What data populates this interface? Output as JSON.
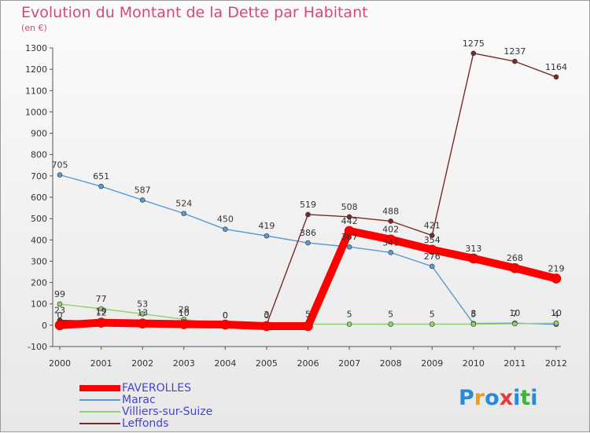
{
  "title": "Evolution du Montant de la Dette par Habitant",
  "unit_label": "(en €)",
  "logo": {
    "text": "Proxiti",
    "letters": [
      "P",
      "r",
      "o",
      "x",
      "i",
      "t",
      "i"
    ],
    "colors": [
      "#2a8ad8",
      "#e8a01a",
      "#2a8ad8",
      "#e43d3d",
      "#2a8ad8",
      "#3db43d",
      "#2a8ad8"
    ]
  },
  "chart_data": {
    "type": "line",
    "title": "Evolution du Montant de la Dette par Habitant",
    "ylabel": "(en €)",
    "xlabel": "",
    "x": [
      "2000",
      "2001",
      "2002",
      "2003",
      "2004",
      "2005",
      "2006",
      "2007",
      "2008",
      "2009",
      "2010",
      "2011",
      "2012"
    ],
    "ylim": [
      -100,
      1300
    ],
    "yticks": [
      "-100",
      "0",
      "100",
      "200",
      "300",
      "400",
      "500",
      "600",
      "700",
      "800",
      "900",
      "1000",
      "1100",
      "1200",
      "1300"
    ],
    "grid": false,
    "legend_position": "bottom-left",
    "series": [
      {
        "name": "FAVEROLLES",
        "color": "#ff0000",
        "width": 10,
        "values": [
          0,
          12,
          8,
          5,
          3,
          -4,
          -4,
          442,
          402,
          354,
          313,
          268,
          219
        ],
        "labels": [
          "0",
          "12",
          "",
          "",
          "",
          "",
          "",
          "442",
          "402",
          "354",
          "313",
          "268",
          "219"
        ]
      },
      {
        "name": "Marac",
        "color": "#5a9ad0",
        "width": 1.4,
        "values": [
          705,
          651,
          587,
          524,
          450,
          419,
          386,
          367,
          341,
          276,
          8,
          10,
          4
        ],
        "labels": [
          "705",
          "651",
          "587",
          "524",
          "450",
          "419",
          "386",
          "367",
          "341",
          "276",
          "8",
          "10",
          "4"
        ]
      },
      {
        "name": "Villiers-sur-Suize",
        "color": "#90d070",
        "width": 1.4,
        "values": [
          99,
          77,
          53,
          28,
          0,
          0,
          5,
          5,
          5,
          5,
          5,
          7,
          10
        ],
        "labels": [
          "99",
          "77",
          "53",
          "28",
          "0",
          "0",
          "5",
          "5",
          "5",
          "5",
          "5",
          "7",
          "10"
        ]
      },
      {
        "name": "Leffonds",
        "color": "#7a2a2a",
        "width": 1.4,
        "values": [
          23,
          19,
          13,
          10,
          0,
          3,
          519,
          508,
          488,
          421,
          1275,
          1237,
          1164
        ],
        "labels": [
          "23",
          "19",
          "13",
          "10",
          "0",
          "3",
          "519",
          "508",
          "488",
          "421",
          "1275",
          "1237",
          "1164"
        ]
      }
    ]
  }
}
